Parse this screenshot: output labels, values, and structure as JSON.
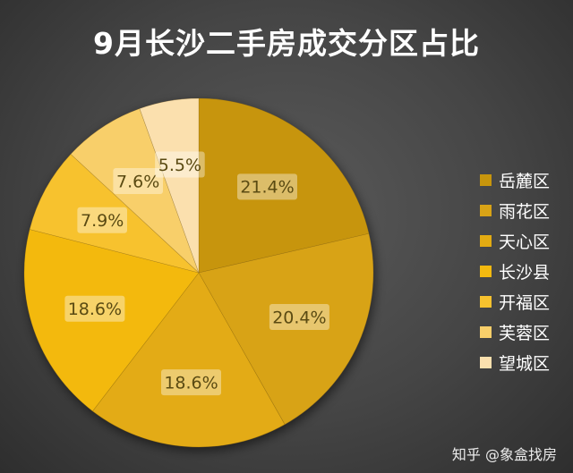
{
  "chart_data": {
    "type": "pie",
    "title": "9月长沙二手房成交分区占比",
    "categories": [
      "岳麓区",
      "雨花区",
      "天心区",
      "长沙县",
      "开福区",
      "芙蓉区",
      "望城区"
    ],
    "values": [
      21.4,
      20.4,
      18.6,
      18.6,
      7.9,
      7.6,
      5.5
    ],
    "data_labels": [
      "21.4%",
      "20.4%",
      "18.6%",
      "18.6%",
      "7.9%",
      "7.6%",
      "5.5%"
    ],
    "colors": [
      "#c7950c",
      "#d8a316",
      "#e3ab12",
      "#f3b90f",
      "#f7c22e",
      "#f8cf6a",
      "#fbe0ae"
    ],
    "legend_position": "right",
    "start_angle": "12 o'clock",
    "direction": "clockwise"
  },
  "watermark": "知乎 @象盒找房"
}
